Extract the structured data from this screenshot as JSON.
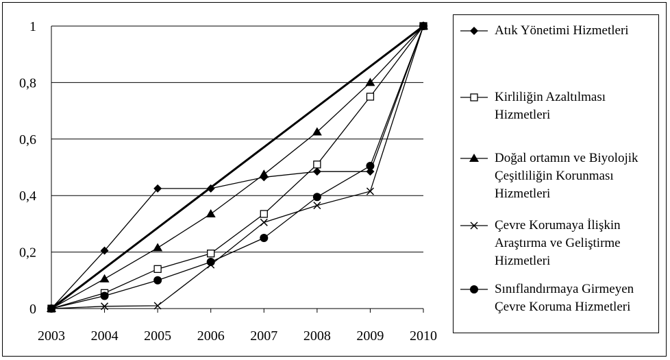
{
  "chart_data": {
    "type": "line",
    "x": [
      "2003",
      "2004",
      "2005",
      "2006",
      "2007",
      "2008",
      "2009",
      "2010"
    ],
    "ylim": [
      0,
      1
    ],
    "yticks": [
      "0",
      "0,2",
      "0,4",
      "0,6",
      "0,8",
      "1"
    ],
    "ytick_values": [
      0,
      0.2,
      0.4,
      0.6,
      0.8,
      1
    ],
    "grid": true,
    "legend_position": "right",
    "reference_line": {
      "from": [
        2003,
        0
      ],
      "to": [
        2010,
        1
      ]
    },
    "series": [
      {
        "name": "Atık Yönetimi Hizmetleri",
        "marker": "diamond",
        "values": [
          0,
          0.205,
          0.425,
          0.425,
          0.465,
          0.485,
          0.485,
          1
        ]
      },
      {
        "name": "Kirliliğin Azaltılması Hizmetleri",
        "marker": "square-open",
        "values": [
          0,
          0.055,
          0.14,
          0.195,
          0.335,
          0.51,
          0.75,
          1
        ]
      },
      {
        "name": "Doğal ortamın ve Biyolojik Çeşitliliğin Korunması Hizmetleri",
        "marker": "triangle",
        "values": [
          0,
          0.105,
          0.215,
          0.335,
          0.475,
          0.625,
          0.8,
          1
        ]
      },
      {
        "name": "Çevre Korumaya İlişkin Araştırma ve Geliştirme Hizmetleri",
        "marker": "x",
        "values": [
          0,
          0.008,
          0.01,
          0.155,
          0.305,
          0.365,
          0.415,
          1
        ]
      },
      {
        "name": "Sınıflandırmaya Girmeyen Çevre Koruma Hizmetleri",
        "marker": "circle",
        "values": [
          0,
          0.045,
          0.1,
          0.165,
          0.25,
          0.395,
          0.505,
          1
        ]
      }
    ]
  }
}
